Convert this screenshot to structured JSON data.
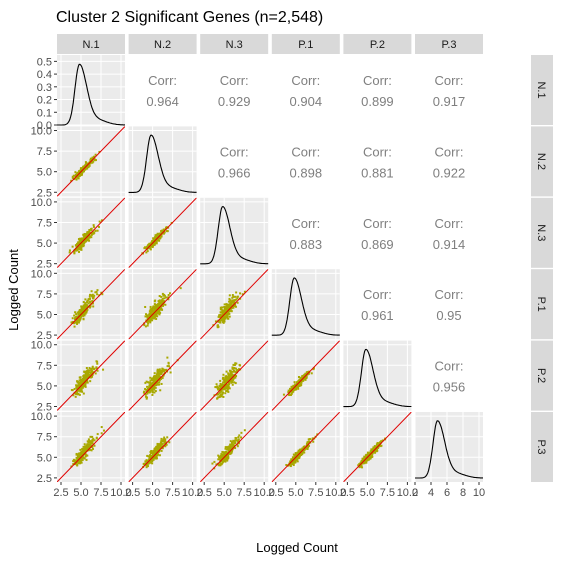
{
  "chart_data": {
    "type": "scatter-matrix",
    "title": "Cluster 2 Significant Genes (n=2,548)",
    "xlabel": "Logged Count",
    "ylabel": "Logged Count",
    "variables": [
      "N.1",
      "N.2",
      "N.3",
      "P.1",
      "P.2",
      "P.3"
    ],
    "axis_range": [
      2,
      10.5
    ],
    "axis_ticks": [
      2.5,
      5.0,
      7.5,
      10.0
    ],
    "axis_tick_labels": [
      "2.5",
      "5.0",
      "7.5",
      "10.0"
    ],
    "density_range": [
      0,
      0.55
    ],
    "density_ticks": [
      0.0,
      0.1,
      0.2,
      0.3,
      0.4,
      0.5
    ],
    "density_tick_labels": [
      "0.0",
      "0.1",
      "0.2",
      "0.3",
      "0.4",
      "0.5"
    ],
    "last_column_ticks": [
      2,
      4,
      6,
      8,
      10
    ],
    "last_column_tick_labels": [
      "2",
      "4",
      "6",
      "8",
      "10"
    ],
    "corr_label": "Corr:",
    "correlations": [
      {
        "row": "N.1",
        "col": "N.2",
        "value": "0.964"
      },
      {
        "row": "N.1",
        "col": "N.3",
        "value": "0.929"
      },
      {
        "row": "N.1",
        "col": "P.1",
        "value": "0.904"
      },
      {
        "row": "N.1",
        "col": "P.2",
        "value": "0.899"
      },
      {
        "row": "N.1",
        "col": "P.3",
        "value": "0.917"
      },
      {
        "row": "N.2",
        "col": "N.3",
        "value": "0.966"
      },
      {
        "row": "N.2",
        "col": "P.1",
        "value": "0.898"
      },
      {
        "row": "N.2",
        "col": "P.2",
        "value": "0.881"
      },
      {
        "row": "N.2",
        "col": "P.3",
        "value": "0.922"
      },
      {
        "row": "N.3",
        "col": "P.1",
        "value": "0.883"
      },
      {
        "row": "N.3",
        "col": "P.2",
        "value": "0.869"
      },
      {
        "row": "N.3",
        "col": "P.3",
        "value": "0.914"
      },
      {
        "row": "P.1",
        "col": "P.2",
        "value": "0.961"
      },
      {
        "row": "P.1",
        "col": "P.3",
        "value": "0.95"
      },
      {
        "row": "P.2",
        "col": "P.3",
        "value": "0.956"
      }
    ],
    "density_peak_location": 4.8,
    "point_color": "#a8a800",
    "identity_line_color": "#e00000",
    "panel_bg": "#ebebeb",
    "strip_bg": "#d9d9d9"
  }
}
